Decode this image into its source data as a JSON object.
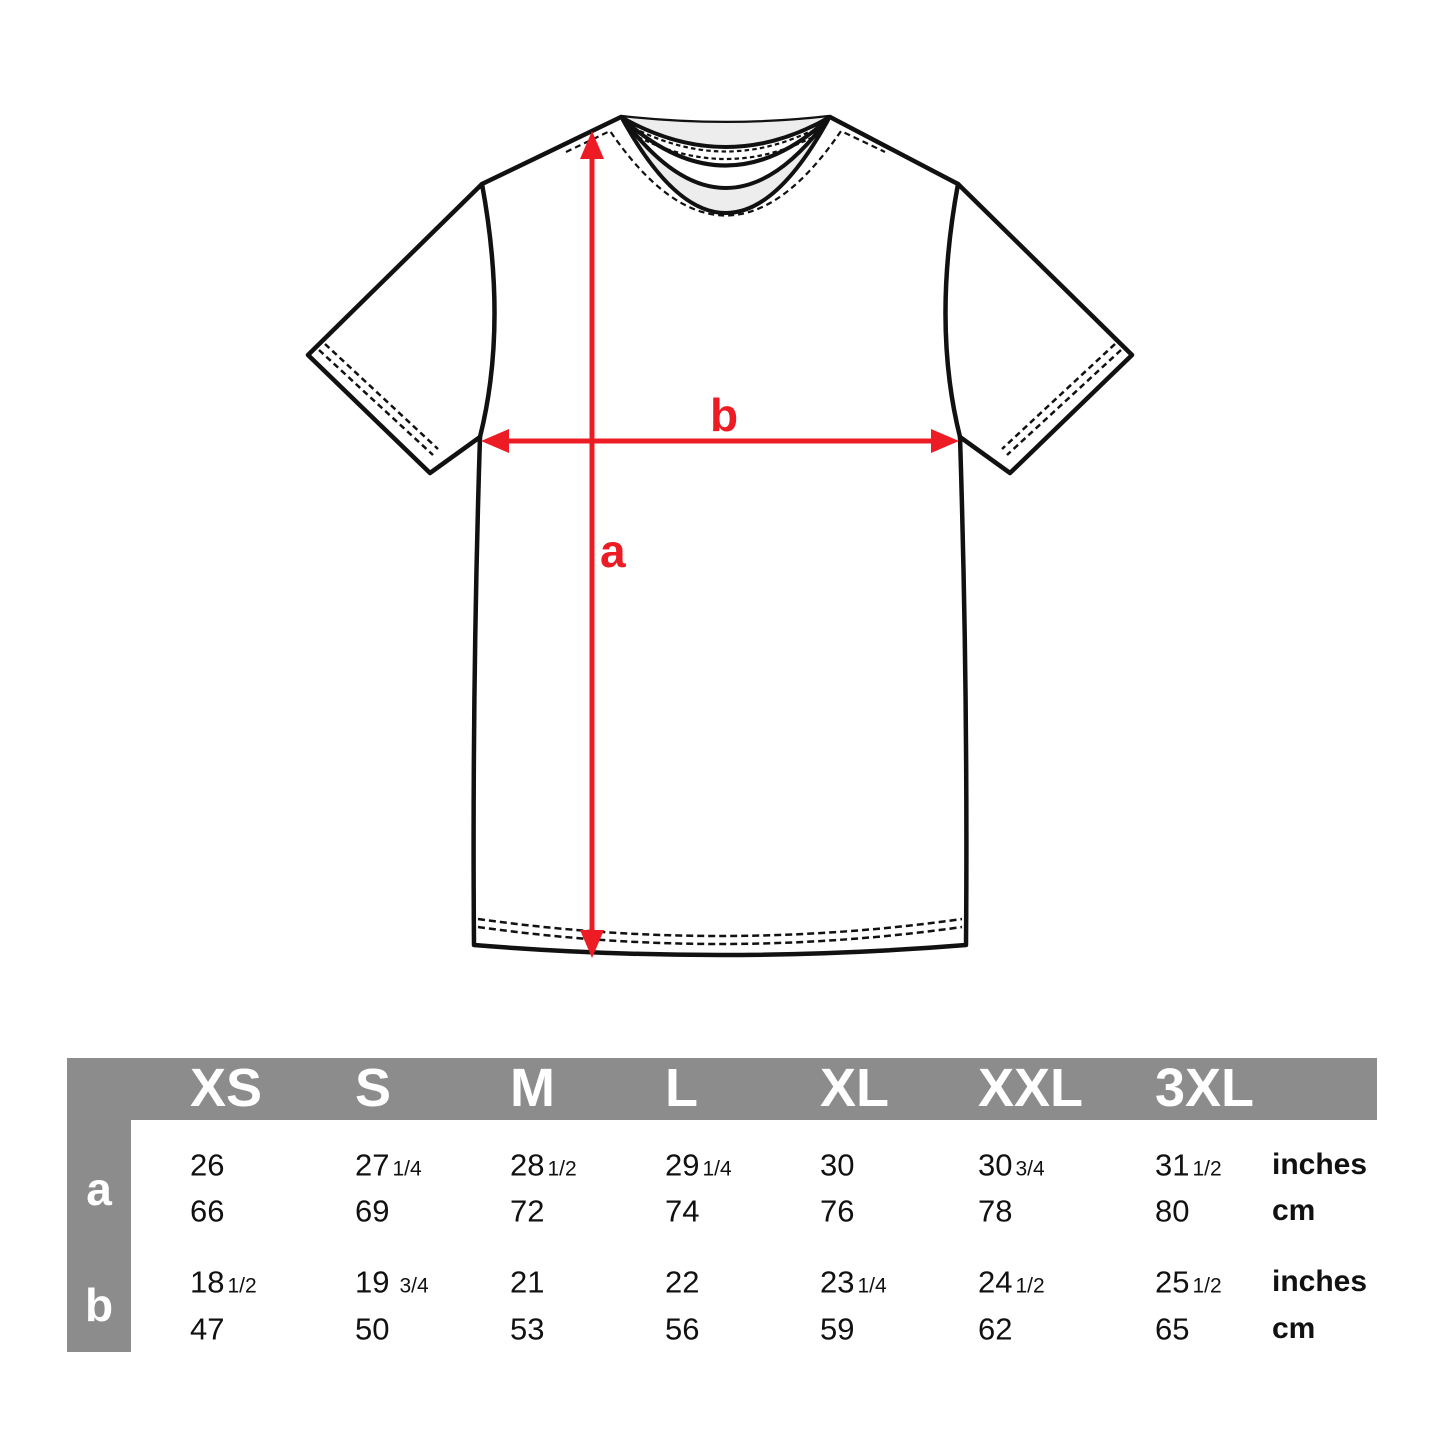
{
  "page": {
    "background": "#ffffff"
  },
  "diagram": {
    "kind": "t-shirt flat technical drawing, front view",
    "label_a": "a",
    "label_b": "b",
    "arrow_color": "#ed1c24",
    "outline_color": "#111111",
    "collar_fill": "#ededed"
  },
  "table": {
    "header_bg": "#8c8c8c",
    "header_text_color": "#ffffff",
    "sizes": [
      "XS",
      "S",
      "M",
      "L",
      "XL",
      "XXL",
      "3XL"
    ],
    "units": {
      "inches": "inches",
      "cm": "cm"
    },
    "rows": [
      {
        "label": "a",
        "inches": [
          {
            "m": "26"
          },
          {
            "m": "27",
            "f": "1/4"
          },
          {
            "m": "28",
            "f": "1/2"
          },
          {
            "m": "29",
            "f": "1/4"
          },
          {
            "m": "30"
          },
          {
            "m": "30",
            "f": "3/4"
          },
          {
            "m": "31",
            "f": "1/2"
          }
        ],
        "cm": [
          "66",
          "69",
          "72",
          "74",
          "76",
          "78",
          "80"
        ]
      },
      {
        "label": "b",
        "inches": [
          {
            "m": "18",
            "f": "1/2"
          },
          {
            "m": "19",
            "f": "3/4",
            "gap": true
          },
          {
            "m": "21"
          },
          {
            "m": "22"
          },
          {
            "m": "23",
            "f": "1/4"
          },
          {
            "m": "24",
            "f": "1/2"
          },
          {
            "m": "25",
            "f": "1/2"
          }
        ],
        "cm": [
          "47",
          "50",
          "53",
          "56",
          "59",
          "62",
          "65"
        ]
      }
    ]
  },
  "chart_data": {
    "type": "table",
    "title": "T-shirt size chart",
    "columns": [
      "XS",
      "S",
      "M",
      "L",
      "XL",
      "XXL",
      "3XL"
    ],
    "rows": [
      {
        "measure": "a",
        "unit": "inches",
        "values": [
          26,
          27.25,
          28.5,
          29.25,
          30,
          30.75,
          31.5
        ]
      },
      {
        "measure": "a",
        "unit": "cm",
        "values": [
          66,
          69,
          72,
          74,
          76,
          78,
          80
        ]
      },
      {
        "measure": "b",
        "unit": "inches",
        "values": [
          18.5,
          19.75,
          21,
          22,
          23.25,
          24.5,
          25.5
        ]
      },
      {
        "measure": "b",
        "unit": "cm",
        "values": [
          47,
          50,
          53,
          56,
          59,
          62,
          65
        ]
      }
    ]
  }
}
